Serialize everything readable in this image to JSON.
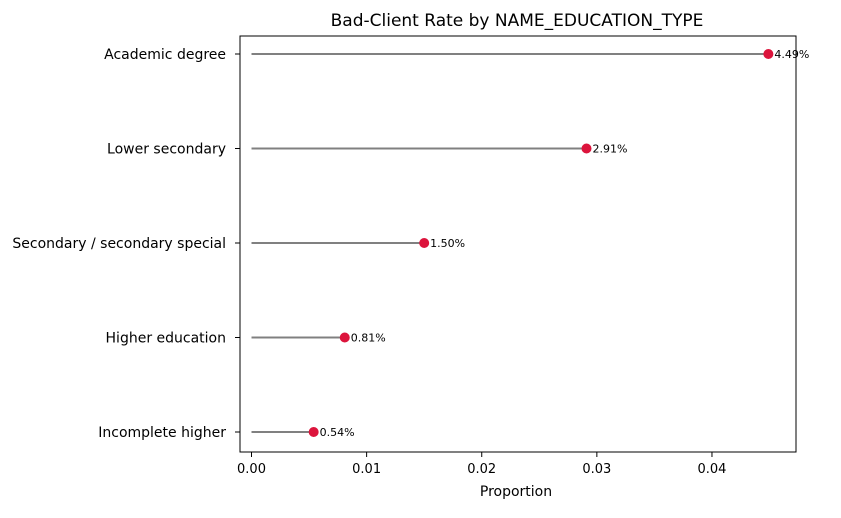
{
  "chart_data": {
    "type": "lollipop",
    "title": "Bad-Client Rate by NAME_EDUCATION_TYPE",
    "xlabel": "Proportion",
    "ylabel": "",
    "xlim": [
      -0.001,
      0.0473
    ],
    "xticks": [
      0.0,
      0.01,
      0.02,
      0.03,
      0.04
    ],
    "xtick_labels": [
      "0.00",
      "0.01",
      "0.02",
      "0.03",
      "0.04"
    ],
    "categories": [
      "Academic degree",
      "Lower secondary",
      "Secondary / secondary special",
      "Higher education",
      "Incomplete higher"
    ],
    "values": [
      0.0449,
      0.0291,
      0.015,
      0.0081,
      0.0054
    ],
    "value_labels": [
      "4.49%",
      "2.91%",
      "1.50%",
      "0.81%",
      "0.54%"
    ],
    "grid": false,
    "colors": {
      "marker": "#DC143C",
      "stem": "#808080",
      "axes": "#000000"
    }
  }
}
